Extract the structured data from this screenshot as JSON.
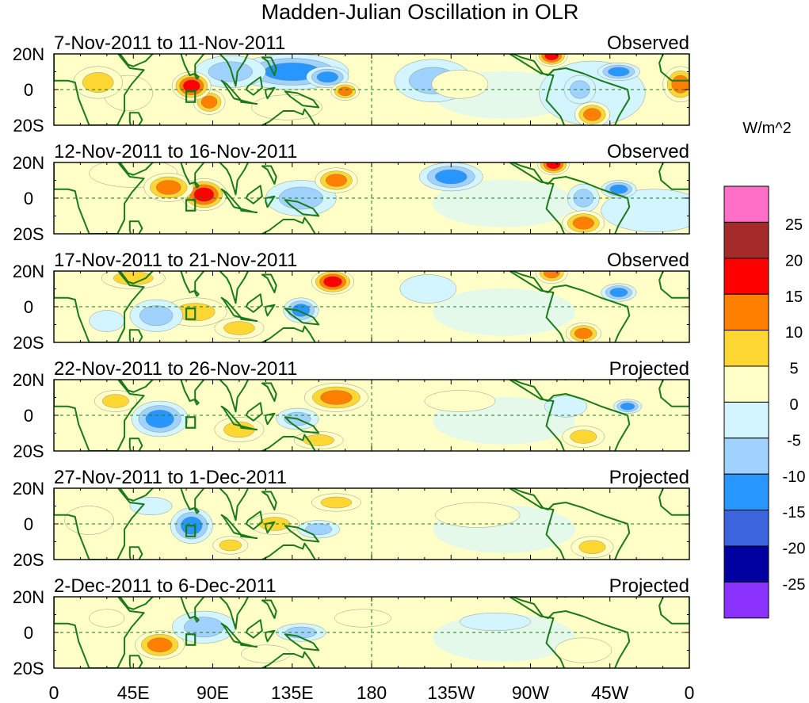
{
  "title": "Madden-Julian Oscillation in OLR",
  "units": "W/m^2",
  "lat_labels": [
    "20N",
    "0",
    "20S"
  ],
  "lon_labels": [
    "0",
    "45E",
    "90E",
    "135E",
    "180",
    "135W",
    "90W",
    "45W",
    "0"
  ],
  "panels": [
    {
      "date_range": "7-Nov-2011 to 11-Nov-2011",
      "kind": "Observed",
      "anomalies": [
        {
          "lon": 215,
          "lat": 5,
          "w": 22,
          "h": 12,
          "v": -8
        },
        {
          "lon": 305,
          "lat": -2,
          "w": 30,
          "h": 18,
          "v": -3
        },
        {
          "lon": 135,
          "lat": 10,
          "w": 32,
          "h": 10,
          "v": -13
        },
        {
          "lon": 355,
          "lat": 3,
          "w": 10,
          "h": 10,
          "v": 12
        },
        {
          "lon": 230,
          "lat": 3,
          "w": 16,
          "h": 8,
          "v": 3
        },
        {
          "lon": 298,
          "lat": 0,
          "w": 9,
          "h": 8,
          "v": -8
        },
        {
          "lon": 42,
          "lat": -2,
          "w": 14,
          "h": 10,
          "v": 3
        },
        {
          "lon": 88,
          "lat": -7,
          "w": 9,
          "h": 7,
          "v": 12
        },
        {
          "lon": 132,
          "lat": -10,
          "w": 20,
          "h": 7,
          "v": 3
        },
        {
          "lon": 305,
          "lat": -14,
          "w": 10,
          "h": 7,
          "v": 12
        },
        {
          "lon": 25,
          "lat": 4,
          "w": 14,
          "h": 9,
          "v": 6
        },
        {
          "lon": 100,
          "lat": 10,
          "w": 20,
          "h": 9,
          "v": -6
        },
        {
          "lon": 155,
          "lat": 7,
          "w": 12,
          "h": 6,
          "v": -15
        },
        {
          "lon": 78,
          "lat": 2,
          "w": 11,
          "h": 8,
          "v": 17
        },
        {
          "lon": 282,
          "lat": 19,
          "w": 9,
          "h": 6,
          "v": 17
        },
        {
          "lon": 320,
          "lat": 10,
          "w": 12,
          "h": 5,
          "v": -12
        },
        {
          "lon": 165,
          "lat": -1,
          "w": 8,
          "h": 5,
          "v": 11
        }
      ]
    },
    {
      "date_range": "12-Nov-2011 to 16-Nov-2011",
      "kind": "Observed",
      "anomalies": [
        {
          "lon": 340,
          "lat": -7,
          "w": 30,
          "h": 12,
          "v": -3
        },
        {
          "lon": 45,
          "lat": 14,
          "w": 25,
          "h": 8,
          "v": 5
        },
        {
          "lon": 140,
          "lat": 0,
          "w": 20,
          "h": 10,
          "v": -8
        },
        {
          "lon": 300,
          "lat": 0,
          "w": 9,
          "h": 8,
          "v": -8
        },
        {
          "lon": 300,
          "lat": -14,
          "w": 12,
          "h": 7,
          "v": 12
        },
        {
          "lon": 85,
          "lat": 2,
          "w": 13,
          "h": 9,
          "v": 17
        },
        {
          "lon": 160,
          "lat": 10,
          "w": 12,
          "h": 7,
          "v": 11
        },
        {
          "lon": 225,
          "lat": 12,
          "w": 18,
          "h": 8,
          "v": -13
        },
        {
          "lon": 65,
          "lat": 6,
          "w": 14,
          "h": 8,
          "v": 12
        },
        {
          "lon": 283,
          "lat": 19,
          "w": 9,
          "h": 6,
          "v": 17
        },
        {
          "lon": 320,
          "lat": 5,
          "w": 10,
          "h": 5,
          "v": -12
        }
      ]
    },
    {
      "date_range": "17-Nov-2011 to 21-Nov-2011",
      "kind": "Observed",
      "anomalies": [
        {
          "lon": 80,
          "lat": -3,
          "w": 18,
          "h": 8,
          "v": 7
        },
        {
          "lon": 140,
          "lat": -2,
          "w": 10,
          "h": 7,
          "v": -12
        },
        {
          "lon": 58,
          "lat": -5,
          "w": 15,
          "h": 9,
          "v": -8
        },
        {
          "lon": 212,
          "lat": 10,
          "w": 16,
          "h": 8,
          "v": -4
        },
        {
          "lon": 300,
          "lat": -15,
          "w": 10,
          "h": 6,
          "v": 12
        },
        {
          "lon": 282,
          "lat": 19,
          "w": 9,
          "h": 6,
          "v": 13
        },
        {
          "lon": 158,
          "lat": 14,
          "w": 12,
          "h": 7,
          "v": 16
        },
        {
          "lon": 30,
          "lat": -8,
          "w": 10,
          "h": 6,
          "v": -4
        },
        {
          "lon": 320,
          "lat": 8,
          "w": 10,
          "h": 5,
          "v": -13
        },
        {
          "lon": 45,
          "lat": 16,
          "w": 18,
          "h": 6,
          "v": 6
        },
        {
          "lon": 105,
          "lat": -12,
          "w": 14,
          "h": 6,
          "v": 8
        }
      ]
    },
    {
      "date_range": "22-Nov-2011 to 26-Nov-2011",
      "kind": "Projected",
      "anomalies": [
        {
          "lon": 60,
          "lat": -2,
          "w": 16,
          "h": 10,
          "v": -13
        },
        {
          "lon": 160,
          "lat": 10,
          "w": 18,
          "h": 8,
          "v": 12
        },
        {
          "lon": 105,
          "lat": -8,
          "w": 14,
          "h": 7,
          "v": 7
        },
        {
          "lon": 138,
          "lat": -2,
          "w": 12,
          "h": 6,
          "v": -8
        },
        {
          "lon": 300,
          "lat": -12,
          "w": 12,
          "h": 6,
          "v": 7
        },
        {
          "lon": 150,
          "lat": -14,
          "w": 14,
          "h": 5,
          "v": 7
        },
        {
          "lon": 290,
          "lat": 5,
          "w": 12,
          "h": 6,
          "v": -4
        },
        {
          "lon": 230,
          "lat": 8,
          "w": 20,
          "h": 6,
          "v": 3
        },
        {
          "lon": 35,
          "lat": 8,
          "w": 12,
          "h": 6,
          "v": 6
        },
        {
          "lon": 325,
          "lat": 5,
          "w": 8,
          "h": 4,
          "v": -12
        }
      ]
    },
    {
      "date_range": "27-Nov-2011 to 1-Dec-2011",
      "kind": "Projected",
      "anomalies": [
        {
          "lon": 78,
          "lat": -1,
          "w": 12,
          "h": 10,
          "v": -14
        },
        {
          "lon": 125,
          "lat": 0,
          "w": 14,
          "h": 6,
          "v": 6
        },
        {
          "lon": 160,
          "lat": 12,
          "w": 14,
          "h": 5,
          "v": 7
        },
        {
          "lon": 150,
          "lat": -3,
          "w": 12,
          "h": 5,
          "v": -7
        },
        {
          "lon": 240,
          "lat": 5,
          "w": 24,
          "h": 7,
          "v": 3
        },
        {
          "lon": 305,
          "lat": -13,
          "w": 12,
          "h": 6,
          "v": 6
        },
        {
          "lon": 20,
          "lat": 2,
          "w": 14,
          "h": 8,
          "v": 4
        },
        {
          "lon": 100,
          "lat": -12,
          "w": 10,
          "h": 5,
          "v": 6
        },
        {
          "lon": 55,
          "lat": 10,
          "w": 12,
          "h": 5,
          "v": -5
        }
      ]
    },
    {
      "date_range": "2-Dec-2011 to 6-Dec-2011",
      "kind": "Projected",
      "anomalies": [
        {
          "lon": 60,
          "lat": -7,
          "w": 14,
          "h": 8,
          "v": 12
        },
        {
          "lon": 85,
          "lat": 3,
          "w": 18,
          "h": 9,
          "v": -7
        },
        {
          "lon": 175,
          "lat": 8,
          "w": 16,
          "h": 5,
          "v": 4
        },
        {
          "lon": 140,
          "lat": 0,
          "w": 14,
          "h": 5,
          "v": -6
        },
        {
          "lon": 300,
          "lat": -10,
          "w": 16,
          "h": 7,
          "v": 4
        },
        {
          "lon": 250,
          "lat": 6,
          "w": 20,
          "h": 5,
          "v": -3
        },
        {
          "lon": 30,
          "lat": 8,
          "w": 10,
          "h": 5,
          "v": 4
        },
        {
          "lon": 120,
          "lat": -12,
          "w": 14,
          "h": 5,
          "v": 5
        }
      ]
    }
  ],
  "colorbar": {
    "labels": [
      "25",
      "20",
      "15",
      "10",
      "5",
      "0",
      "-5",
      "-10",
      "-15",
      "-20",
      "-25"
    ],
    "colors": [
      "#ff6ec7",
      "#a52a2a",
      "#ff0000",
      "#ff7f00",
      "#ffd733",
      "#ffffc8",
      "#d2f5ff",
      "#a0d2ff",
      "#2896ff",
      "#3c64dc",
      "#0000a0",
      "#8c32ff"
    ]
  },
  "colors": {
    "land": "#1a7a1a",
    "box": "#1a7a1a",
    "dash": "#1a7a1a"
  }
}
